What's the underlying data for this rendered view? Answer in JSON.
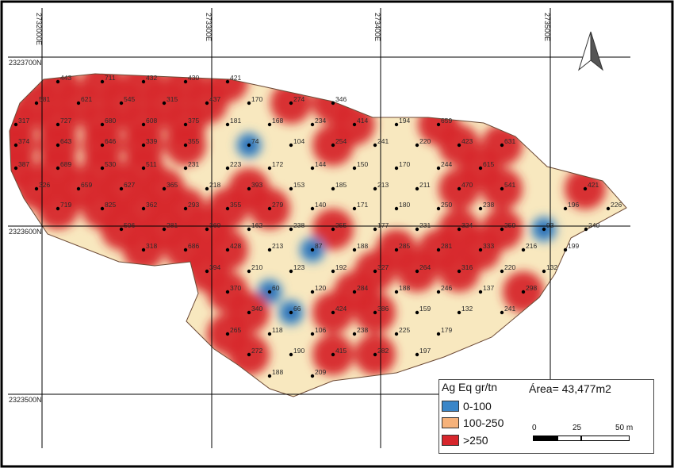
{
  "grid": {
    "x_labels": [
      "2732000E",
      "273300E",
      "273400E",
      "273500E"
    ],
    "y_labels": [
      "2323700N",
      "2323600N",
      "2323500N"
    ]
  },
  "legend": {
    "title": "Ag Eq gr/tn",
    "items": [
      {
        "label": "0-100",
        "color": "#3a86c8"
      },
      {
        "label": "100-250",
        "color": "#f6b27a"
      },
      {
        "label": ">250",
        "color": "#d7262c"
      }
    ]
  },
  "area_label": "Área= 43,477m2",
  "scale": {
    "start": "0",
    "mid": "25",
    "end": "50 m"
  },
  "colors": {
    "high": "#d7262c",
    "mid": "#f8e8bf",
    "low": "#3a86c8",
    "frame": "#000000"
  },
  "icons": {
    "north_arrow": "north-arrow-icon"
  },
  "samples": [
    "443",
    "711",
    "432",
    "430",
    "421",
    "581",
    "621",
    "545",
    "315",
    "437",
    "170",
    "274",
    "346",
    "317",
    "727",
    "680",
    "608",
    "375",
    "181",
    "168",
    "234",
    "414",
    "194",
    "659",
    "374",
    "643",
    "646",
    "339",
    "355",
    "74",
    "104",
    "254",
    "241",
    "220",
    "423",
    "631",
    "387",
    "689",
    "530",
    "511",
    "231",
    "223",
    "172",
    "144",
    "150",
    "170",
    "244",
    "615",
    "326",
    "659",
    "627",
    "365",
    "218",
    "393",
    "153",
    "185",
    "213",
    "211",
    "470",
    "541",
    "421",
    "719",
    "825",
    "362",
    "293",
    "355",
    "279",
    "140",
    "171",
    "180",
    "250",
    "238",
    "196",
    "226",
    "506",
    "281",
    "360",
    "162",
    "238",
    "255",
    "177",
    "231",
    "324",
    "259",
    "93",
    "240",
    "318",
    "686",
    "428",
    "213",
    "87",
    "188",
    "285",
    "281",
    "333",
    "216",
    "199",
    "394",
    "210",
    "123",
    "192",
    "327",
    "264",
    "316",
    "220",
    "132",
    "370",
    "60",
    "120",
    "284",
    "188",
    "246",
    "137",
    "298",
    "340",
    "66",
    "424",
    "386",
    "159",
    "132",
    "241",
    "265",
    "118",
    "106",
    "238",
    "225",
    "179",
    "272",
    "190",
    "415",
    "282",
    "197",
    "188",
    "209"
  ]
}
